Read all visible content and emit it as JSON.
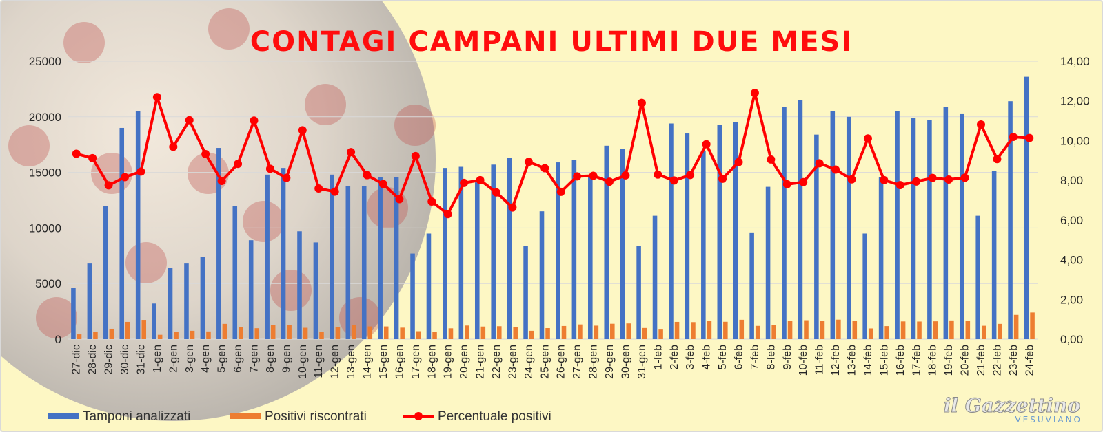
{
  "chart_data": {
    "type": "bar",
    "title": "CONTAGI CAMPANI ULTIMI DUE MESI",
    "categories": [
      "27-dic",
      "28-dic",
      "29-dic",
      "30-dic",
      "31-dic",
      "1-gen",
      "2-gen",
      "3-gen",
      "4-gen",
      "5-gen",
      "6-gen",
      "7-gen",
      "8-gen",
      "9-gen",
      "10-gen",
      "11-gen",
      "12-gen",
      "13-gen",
      "14-gen",
      "15-gen",
      "16-gen",
      "17-gen",
      "18-gen",
      "19-gen",
      "20-gen",
      "21-gen",
      "22-gen",
      "23-gen",
      "24-gen",
      "25-gen",
      "26-gen",
      "27-gen",
      "28-gen",
      "29-gen",
      "30-gen",
      "31-gen",
      "1-feb",
      "2-feb",
      "3-feb",
      "4-feb",
      "5-feb",
      "6-feb",
      "7-feb",
      "8-feb",
      "9-feb",
      "10-feb",
      "11-feb",
      "12-feb",
      "13-feb",
      "14-feb",
      "15-feb",
      "16-feb",
      "17-feb",
      "18-feb",
      "19-feb",
      "20-feb",
      "21-feb",
      "22-feb",
      "23-feb",
      "24-feb"
    ],
    "series": [
      {
        "name": "Tamponi analizzati",
        "type": "bar",
        "axis": "left",
        "color": "#4472c4",
        "values": [
          4600,
          6800,
          12000,
          19000,
          20500,
          3200,
          6400,
          6800,
          7400,
          17200,
          12000,
          8900,
          14800,
          15400,
          9700,
          8700,
          14800,
          13800,
          13800,
          14600,
          14600,
          7700,
          9500,
          15400,
          15500,
          14100,
          15700,
          16300,
          8400,
          11500,
          15900,
          16100,
          14700,
          17400,
          17100,
          8400,
          11100,
          19400,
          18500,
          16900,
          19300,
          19500,
          9600,
          13700,
          20900,
          21500,
          18400,
          20500,
          20000,
          9500,
          14600,
          20500,
          19900,
          19700,
          20900,
          20300,
          11100,
          15100,
          21400,
          23600
        ]
      },
      {
        "name": "Positivi riscontrati",
        "type": "bar",
        "axis": "left",
        "color": "#ed7d31",
        "values": [
          430,
          620,
          930,
          1550,
          1730,
          390,
          620,
          750,
          690,
          1370,
          1060,
          980,
          1270,
          1250,
          1020,
          660,
          1100,
          1300,
          1140,
          1140,
          1030,
          710,
          670,
          970,
          1220,
          1130,
          1160,
          1080,
          750,
          990,
          1180,
          1320,
          1210,
          1380,
          1410,
          1000,
          920,
          1550,
          1530,
          1660,
          1560,
          1740,
          1190,
          1240,
          1630,
          1700,
          1630,
          1750,
          1610,
          960,
          1170,
          1590,
          1580,
          1600,
          1680,
          1650,
          1200,
          1370,
          2180,
          2390
        ]
      },
      {
        "name": "Percentuale positivi",
        "type": "line",
        "axis": "right",
        "color": "#ff0000",
        "values": [
          9.34,
          9.12,
          7.75,
          8.16,
          8.44,
          12.19,
          9.69,
          11.03,
          9.32,
          7.97,
          8.83,
          11.01,
          8.58,
          8.12,
          10.52,
          7.59,
          7.43,
          9.42,
          8.26,
          7.81,
          7.05,
          9.22,
          6.93,
          6.3,
          7.87,
          8.01,
          7.39,
          6.63,
          8.93,
          8.61,
          7.42,
          8.2,
          8.23,
          7.93,
          8.25,
          11.9,
          8.29,
          7.99,
          8.27,
          9.82,
          8.08,
          8.92,
          12.4,
          9.05,
          7.8,
          7.91,
          8.86,
          8.54,
          8.05,
          10.11,
          8.01,
          7.76,
          7.94,
          8.12,
          8.04,
          8.13,
          10.81,
          9.07,
          10.19,
          10.13
        ]
      }
    ],
    "y_left": {
      "min": 0,
      "max": 25000,
      "ticks": [
        "0",
        "5000",
        "10000",
        "15000",
        "20000",
        "25000"
      ]
    },
    "y_right": {
      "min": 0,
      "max": 14,
      "ticks": [
        "0,00",
        "2,00",
        "4,00",
        "6,00",
        "8,00",
        "10,00",
        "12,00",
        "14,00"
      ]
    },
    "grid": true,
    "legend_position": "bottom-left"
  },
  "branding": {
    "logo_main": "il Gazzettino",
    "logo_sub": "VESUVIANO"
  }
}
